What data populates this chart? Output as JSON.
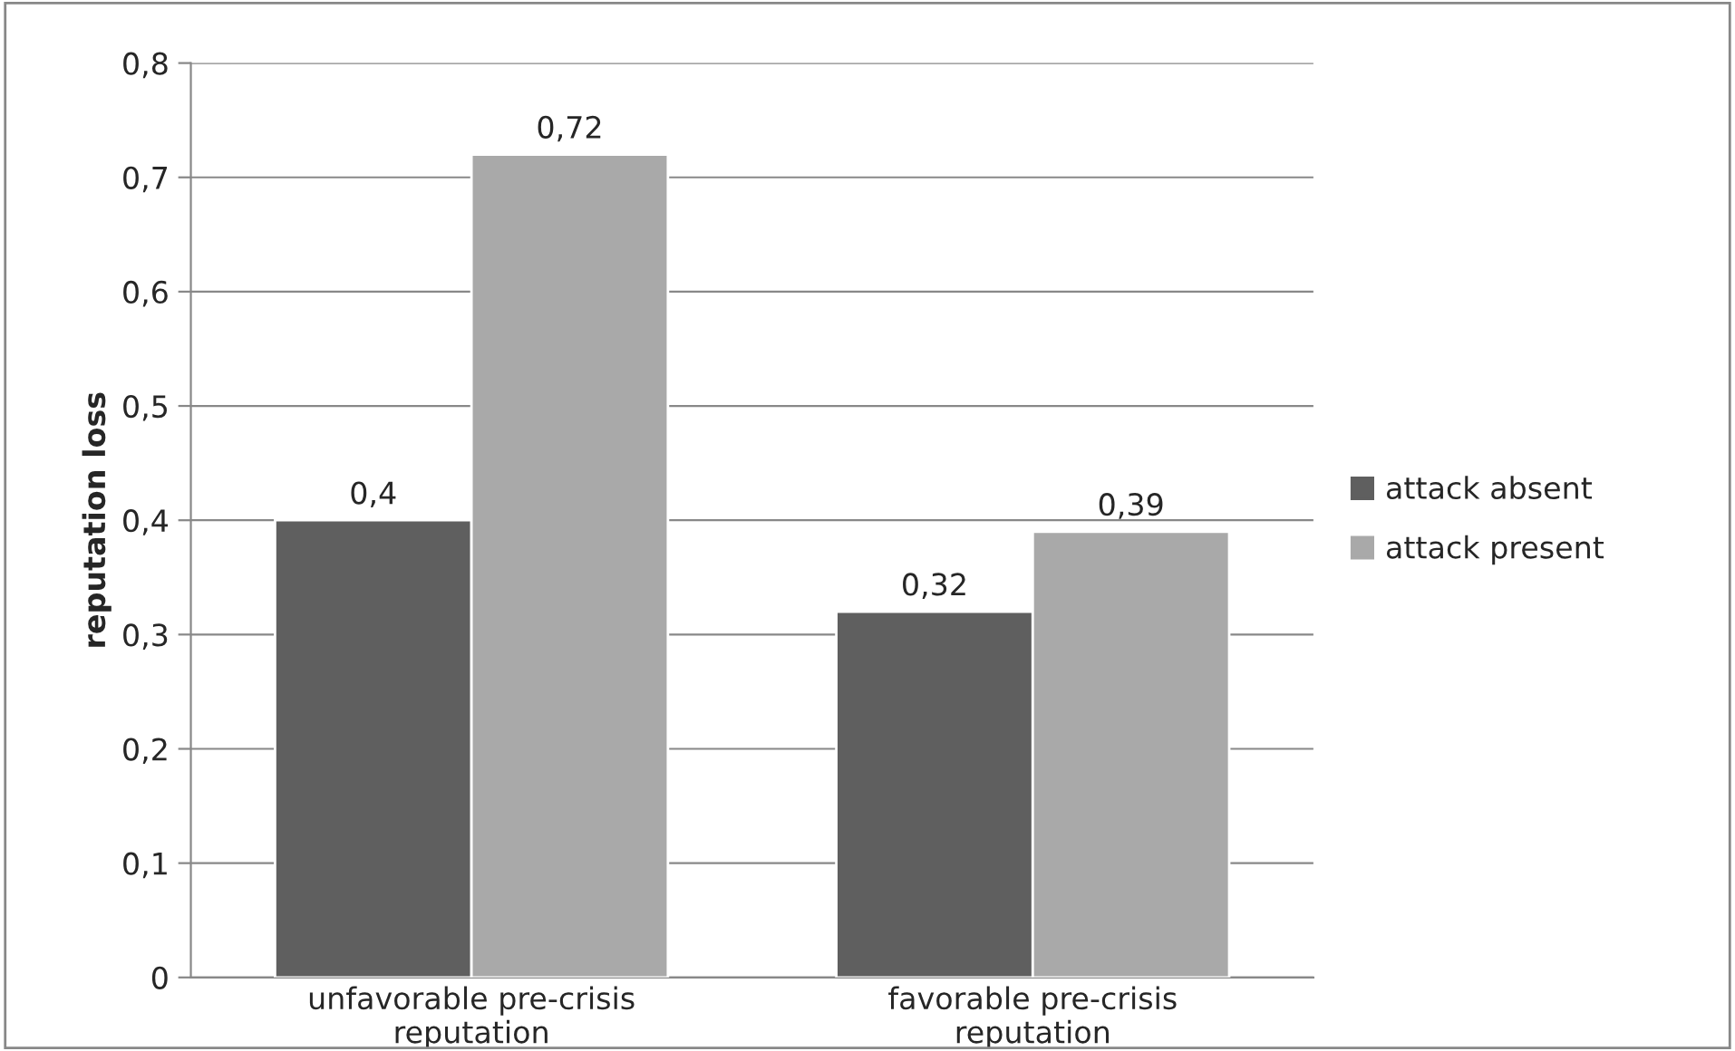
{
  "chart_data": {
    "type": "bar",
    "ylabel": "reputation loss",
    "categories": [
      "unfavorable pre-crisis\nreputation",
      "favorable pre-crisis\nreputation"
    ],
    "series": [
      {
        "name": "attack absent",
        "color": "#5f5f5f",
        "values": [
          0.4,
          0.32
        ],
        "value_labels": [
          "0,4",
          "0,32"
        ]
      },
      {
        "name": "attack present",
        "color": "#a9a9a9",
        "values": [
          0.72,
          0.39
        ],
        "value_labels": [
          "0,72",
          "0,39"
        ]
      }
    ],
    "ylim": [
      0,
      0.8
    ],
    "yticks": [
      {
        "value": 0,
        "label": "0"
      },
      {
        "value": 0.1,
        "label": "0,1"
      },
      {
        "value": 0.2,
        "label": "0,2"
      },
      {
        "value": 0.3,
        "label": "0,3"
      },
      {
        "value": 0.4,
        "label": "0,4"
      },
      {
        "value": 0.5,
        "label": "0,5"
      },
      {
        "value": 0.6,
        "label": "0,6"
      },
      {
        "value": 0.7,
        "label": "0,7"
      },
      {
        "value": 0.8,
        "label": "0,8"
      }
    ],
    "grid": "y",
    "legend": "right"
  }
}
